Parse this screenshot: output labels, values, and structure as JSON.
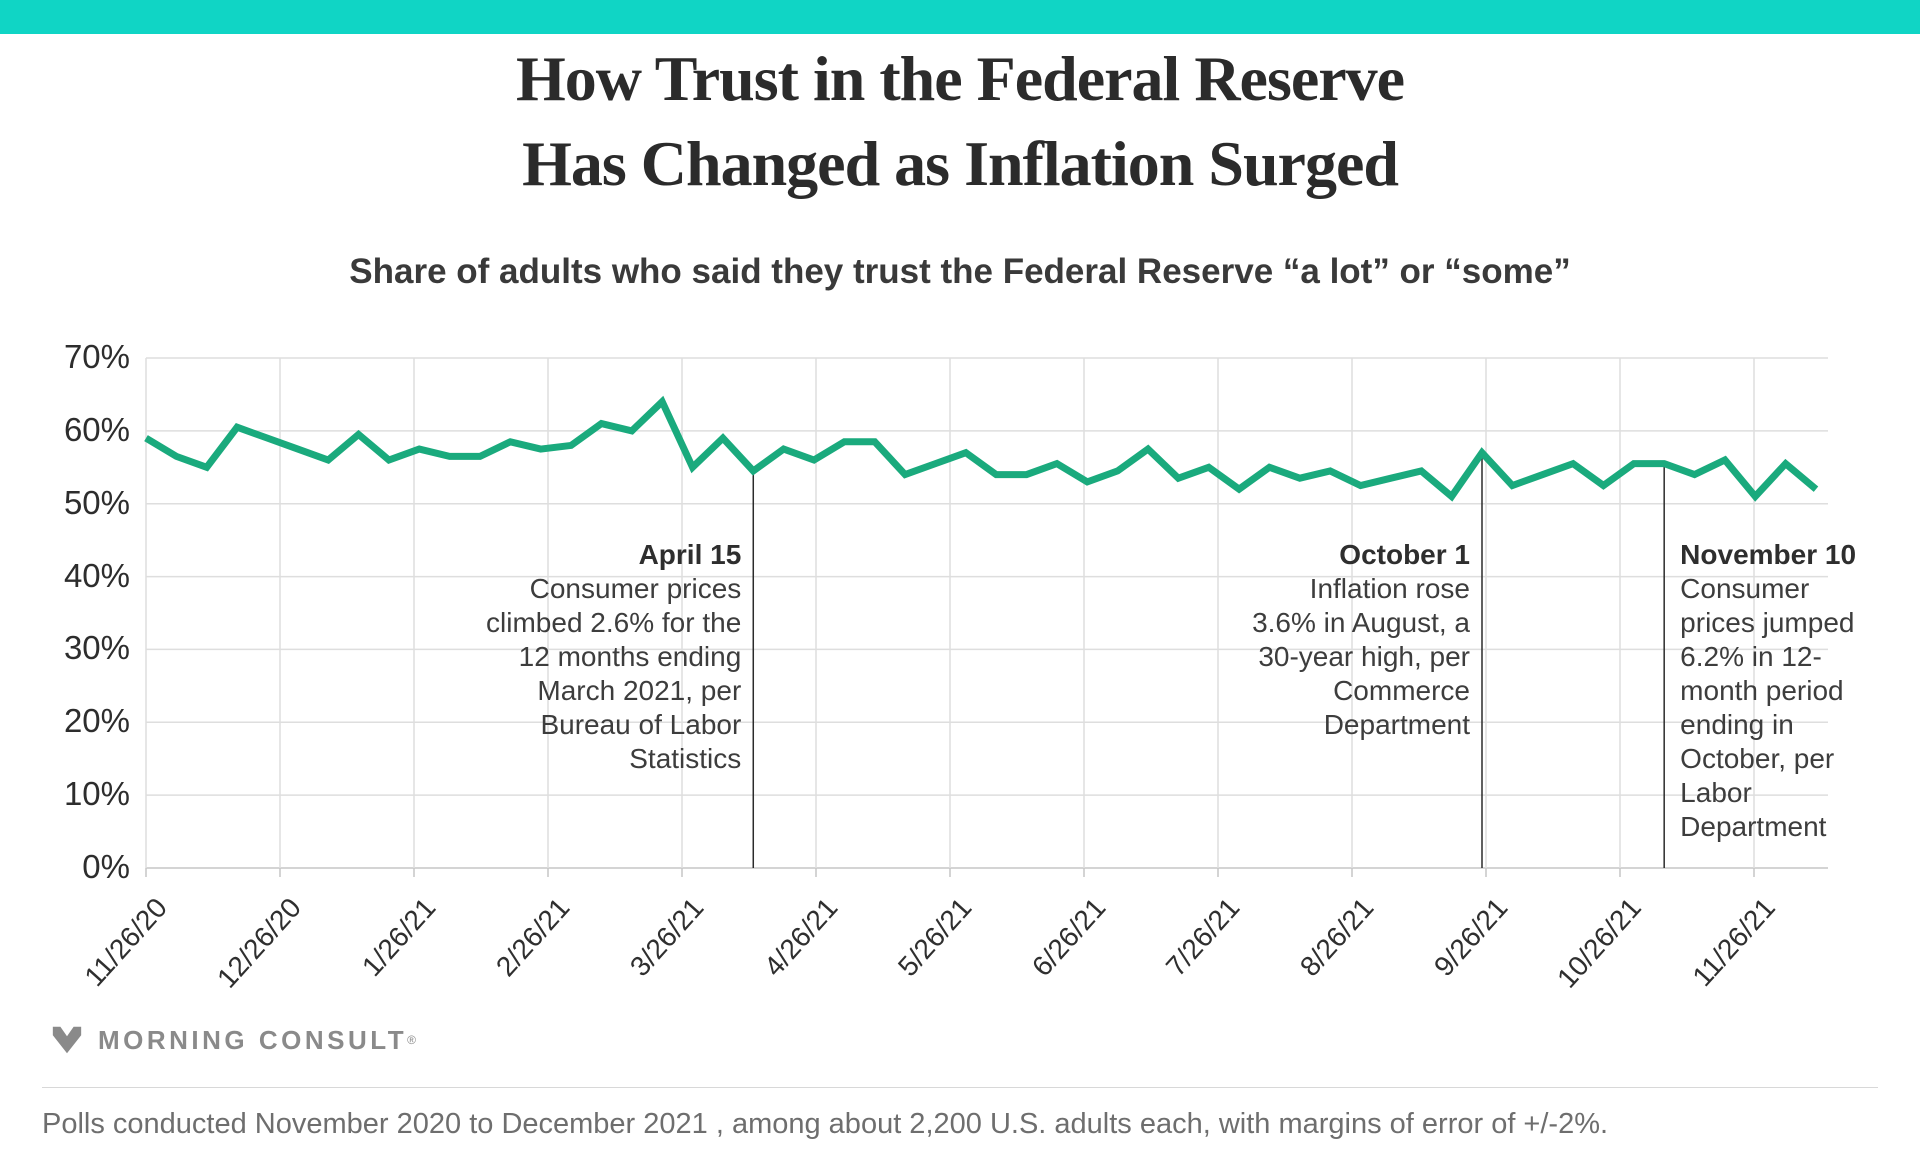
{
  "colors": {
    "brand_teal": "#10d5c5"
  },
  "title": {
    "line1": "How Trust in the Federal Reserve",
    "line2": "Has Changed as Inflation Surged"
  },
  "subtitle": "Share of adults who said they trust the Federal Reserve “a lot” or “some”",
  "chart_data": {
    "type": "line",
    "title": "How Trust in the Federal Reserve Has Changed as Inflation Surged",
    "subtitle": "Share of adults who said they trust the Federal Reserve “a lot” or “some”",
    "series_name": "Share of adults who trust the Federal Reserve a lot or some (%)",
    "ylim": [
      0,
      70
    ],
    "y_tick_values": [
      0,
      10,
      20,
      30,
      40,
      50,
      60,
      70
    ],
    "y_tick_labels": [
      "0%",
      "10%",
      "20%",
      "30%",
      "40%",
      "50%",
      "60%",
      "70%"
    ],
    "x_tick_labels": [
      "11/26/20",
      "12/26/20",
      "1/26/21",
      "2/26/21",
      "3/26/21",
      "4/26/21",
      "5/26/21",
      "6/26/21",
      "7/26/21",
      "8/26/21",
      "9/26/21",
      "10/26/21",
      "11/26/21"
    ],
    "x_unit": "weekly polls, 11/26/20 through mid-December 2021",
    "grid": true,
    "grid_color": "#dedede",
    "axis_color": "#c6c6c6",
    "line_color": "#1aaa7d",
    "annotation_line_color": "#2b2b2b",
    "values": [
      59,
      56.5,
      55,
      60.5,
      59,
      57.5,
      56,
      59.5,
      56,
      57.5,
      56.5,
      56.5,
      58.5,
      57.5,
      58,
      61,
      60,
      64,
      55,
      59,
      54.5,
      57.5,
      56,
      58.5,
      58.5,
      54,
      55.5,
      57,
      54,
      54,
      55.5,
      53,
      54.5,
      57.5,
      53.5,
      55,
      52,
      55,
      53.5,
      54.5,
      52.5,
      53.5,
      54.5,
      51,
      57,
      52.5,
      54,
      55.5,
      52.5,
      55.5,
      55.5,
      54,
      56,
      51,
      55.5,
      52
    ],
    "annotations": [
      {
        "heading": "April 15",
        "lines": [
          "Consumer prices",
          "climbed 2.6% for the",
          "12 months ending",
          "March 2021, per",
          "Bureau of Labor",
          "Statistics"
        ],
        "point_index": 20,
        "align": "right"
      },
      {
        "heading": "October 1",
        "lines": [
          "Inflation rose",
          "3.6% in August, a",
          "30-year high, per",
          "Commerce",
          "Department"
        ],
        "point_index": 44,
        "align": "right"
      },
      {
        "heading": "November 10",
        "lines": [
          "Consumer",
          "prices jumped",
          "6.2% in 12-",
          "month period",
          "ending in",
          "October, per",
          "Labor",
          "Department"
        ],
        "point_index": 50,
        "align": "left"
      }
    ]
  },
  "logo": {
    "text": "MORNING CONSULT",
    "reg": "®"
  },
  "footer": "Polls conducted November 2020 to December 2021 , among about 2,200 U.S. adults each, with margins of error of +/-2%."
}
